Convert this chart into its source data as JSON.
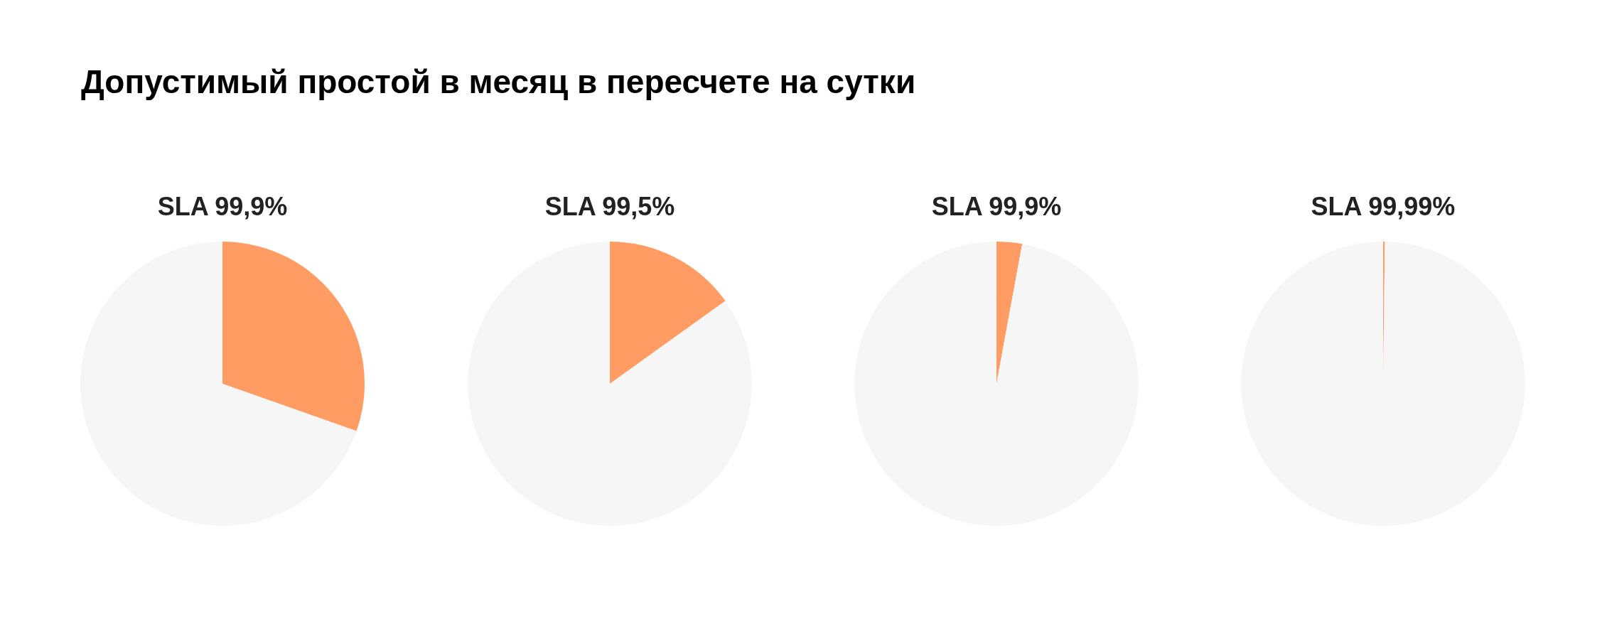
{
  "chart_data": [
    {
      "type": "other",
      "title": "Допустимый простой в месяц в пересчете на сутки"
    },
    {
      "type": "pie",
      "title": "SLA 99,9%",
      "categories": [
        null,
        null
      ],
      "values": [
        30.4,
        69.6
      ],
      "colors": [
        "#ff9c63",
        "#f6f6f6"
      ],
      "legend": false
    },
    {
      "type": "pie",
      "title": "SLA 99,5%",
      "categories": [
        null,
        null
      ],
      "values": [
        15.1,
        84.9
      ],
      "colors": [
        "#ff9c63",
        "#f6f6f6"
      ],
      "legend": false
    },
    {
      "type": "pie",
      "title": "SLA 99,9%",
      "categories": [
        null,
        null
      ],
      "values": [
        2.9,
        97.1
      ],
      "colors": [
        "#ff9c63",
        "#f6f6f6"
      ],
      "legend": false
    },
    {
      "type": "pie",
      "title": "SLA 99,99%",
      "categories": [
        null,
        null
      ],
      "values": [
        0.2,
        99.8
      ],
      "colors": [
        "#ff9c63",
        "#f6f6f6"
      ],
      "legend": false
    }
  ]
}
